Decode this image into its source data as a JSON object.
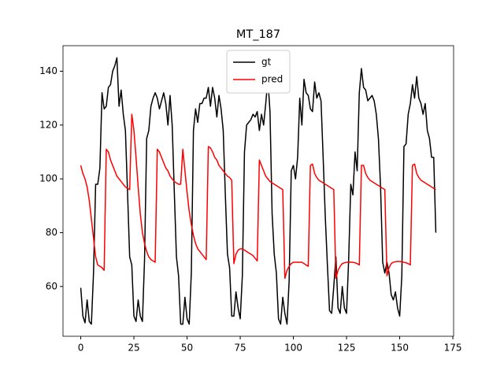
{
  "chart_data": {
    "type": "line",
    "title": "MT_187",
    "x": [
      0,
      1,
      2,
      3,
      4,
      5,
      6,
      7,
      8,
      9,
      10,
      11,
      12,
      13,
      14,
      15,
      16,
      17,
      18,
      19,
      20,
      21,
      22,
      23,
      24,
      25,
      26,
      27,
      28,
      29,
      30,
      31,
      32,
      33,
      34,
      35,
      36,
      37,
      38,
      39,
      40,
      41,
      42,
      43,
      44,
      45,
      46,
      47,
      48,
      49,
      50,
      51,
      52,
      53,
      54,
      55,
      56,
      57,
      58,
      59,
      60,
      61,
      62,
      63,
      64,
      65,
      66,
      67,
      68,
      69,
      70,
      71,
      72,
      73,
      74,
      75,
      76,
      77,
      78,
      79,
      80,
      81,
      82,
      83,
      84,
      85,
      86,
      87,
      88,
      89,
      90,
      91,
      92,
      93,
      94,
      95,
      96,
      97,
      98,
      99,
      100,
      101,
      102,
      103,
      104,
      105,
      106,
      107,
      108,
      109,
      110,
      111,
      112,
      113,
      114,
      115,
      116,
      117,
      118,
      119,
      120,
      121,
      122,
      123,
      124,
      125,
      126,
      127,
      128,
      129,
      130,
      131,
      132,
      133,
      134,
      135,
      136,
      137,
      138,
      139,
      140,
      141,
      142,
      143,
      144,
      145,
      146,
      147,
      148,
      149,
      150,
      151,
      152,
      153,
      154,
      155,
      156,
      157,
      158,
      159,
      160,
      161,
      162,
      163,
      164,
      165,
      166,
      167
    ],
    "series": [
      {
        "name": "gt",
        "color": "#000000",
        "values": [
          59.5,
          49,
          46.5,
          55,
          47,
          46,
          65,
          98,
          98,
          104,
          132,
          126,
          127,
          134,
          135,
          140,
          142,
          145,
          127,
          133,
          124,
          118,
          95,
          71,
          68,
          49,
          47,
          55,
          49,
          47,
          70,
          115,
          118,
          127,
          130,
          132,
          130,
          126,
          129,
          132,
          128,
          120,
          131,
          120,
          95,
          71,
          64,
          46,
          46,
          56,
          48,
          46,
          65,
          118,
          126,
          121,
          128,
          128,
          130,
          130,
          134,
          127,
          134,
          130,
          123,
          131,
          126,
          118,
          94,
          72,
          67,
          49,
          49,
          58,
          52,
          48,
          64,
          110,
          120,
          121,
          122,
          124,
          123,
          125,
          118,
          124,
          120,
          128,
          137,
          125,
          87,
          72,
          65,
          48,
          46,
          56,
          50,
          46,
          62,
          103,
          105,
          100,
          108,
          130,
          120,
          137,
          132,
          131,
          126,
          125,
          136,
          130,
          132,
          129,
          108,
          86,
          68,
          51,
          50,
          60,
          71,
          52,
          50,
          60,
          52,
          50,
          70,
          98,
          94,
          110,
          103,
          132,
          141,
          134,
          133,
          129,
          130,
          131,
          129,
          124,
          115,
          97,
          69,
          65,
          69,
          65,
          57,
          55,
          58,
          52,
          49,
          64,
          112,
          113,
          124,
          128,
          135,
          130,
          138,
          130,
          128,
          124,
          128,
          118,
          115,
          108,
          108,
          80
        ]
      },
      {
        "name": "pred",
        "color": "#ff0000",
        "values": [
          105,
          102,
          100,
          97,
          92,
          85,
          78,
          71,
          68,
          67.5,
          67,
          66,
          111,
          110,
          107,
          105,
          103,
          101,
          100,
          99,
          98,
          97,
          96.5,
          96,
          124,
          118,
          108,
          97,
          87,
          80,
          76,
          73,
          71,
          70,
          69.5,
          69,
          111,
          110,
          108,
          106,
          104,
          103,
          101,
          100,
          99,
          98.5,
          98,
          98,
          111,
          103,
          95,
          88,
          83,
          79,
          76,
          74,
          73,
          72,
          71,
          70,
          112,
          111.5,
          110,
          108,
          107,
          105,
          104,
          103,
          102,
          101,
          100.5,
          99.5,
          68.5,
          72,
          73.5,
          74,
          74,
          73.5,
          73,
          72.5,
          72,
          71.5,
          70.5,
          69.5,
          107,
          105,
          103,
          101,
          100,
          99,
          98.5,
          98,
          97.5,
          97,
          96.5,
          96,
          63,
          66,
          67.5,
          68.5,
          69,
          69,
          69,
          69,
          69,
          68.5,
          68,
          67.5,
          105,
          105.5,
          102,
          100.5,
          99.5,
          99,
          98.5,
          98,
          97.5,
          97,
          96.5,
          96,
          63,
          66,
          67.5,
          68.5,
          68.8,
          69,
          69,
          69,
          69,
          68.8,
          68.5,
          68,
          105,
          105,
          102,
          100.5,
          99.5,
          99,
          98.5,
          98,
          97.5,
          97,
          96.5,
          96,
          64,
          67,
          68.5,
          69,
          69.2,
          69.3,
          69.3,
          69.2,
          69,
          68.8,
          68.5,
          68,
          105,
          105.5,
          102,
          100.5,
          99.5,
          99,
          98.5,
          98,
          97.5,
          97,
          96.5,
          96
        ]
      }
    ],
    "xlim": [
      -8.35,
      175.35
    ],
    "ylim": [
      41.5,
      149.5
    ],
    "xticks": [
      0,
      25,
      50,
      75,
      100,
      125,
      150,
      175
    ],
    "yticks": [
      60,
      80,
      100,
      120,
      140
    ],
    "legend": "upper center",
    "grid": false
  }
}
